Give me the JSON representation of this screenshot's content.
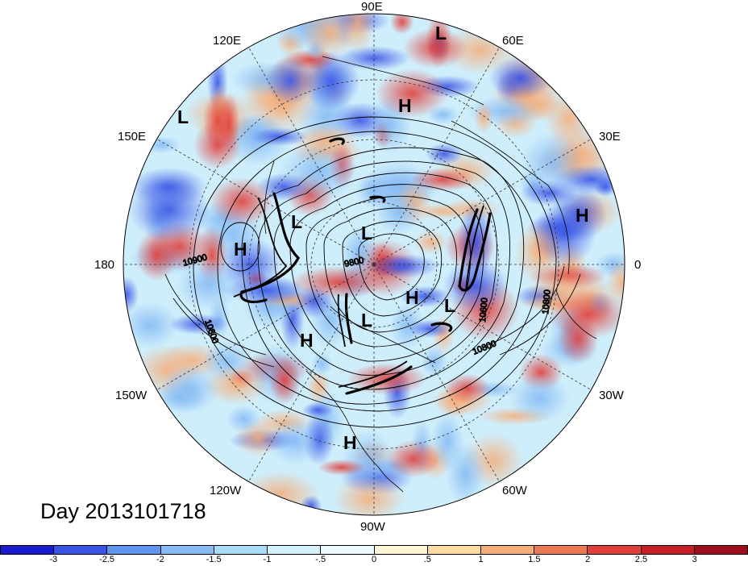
{
  "map": {
    "title": "Day 2013101718",
    "lon_labels": [
      "90E",
      "60E",
      "30E",
      "0",
      "30W",
      "60W",
      "90W",
      "120W",
      "150W",
      "180",
      "150E",
      "120E"
    ],
    "centers": [
      {
        "type": "L"
      },
      {
        "type": "L"
      },
      {
        "type": "H"
      },
      {
        "type": "H"
      },
      {
        "type": "L"
      },
      {
        "type": "L"
      },
      {
        "type": "H"
      },
      {
        "type": "H"
      },
      {
        "type": "L"
      },
      {
        "type": "H"
      },
      {
        "type": "L"
      },
      {
        "type": "H"
      }
    ],
    "contour_labels": [
      "10900",
      "10800",
      "9800",
      "10600",
      "10800",
      "10800"
    ]
  },
  "colorbar": {
    "labels": [
      "-3",
      "-2.5",
      "-2",
      "-1.5",
      "-1",
      "-.5",
      "0",
      ".5",
      "1",
      "1.5",
      "2",
      "2.5",
      "3"
    ],
    "colors": [
      "#1a1ad0",
      "#3a55e6",
      "#5f95ee",
      "#86bbf4",
      "#a8dcf8",
      "#d2f1fb",
      "#eafaff",
      "#fff6d6",
      "#fcdca0",
      "#f6ad78",
      "#ee7a54",
      "#e0403c",
      "#c81c26",
      "#9e0d1c"
    ]
  },
  "colors": {
    "land_line": "#000000",
    "grid": "#333333"
  }
}
